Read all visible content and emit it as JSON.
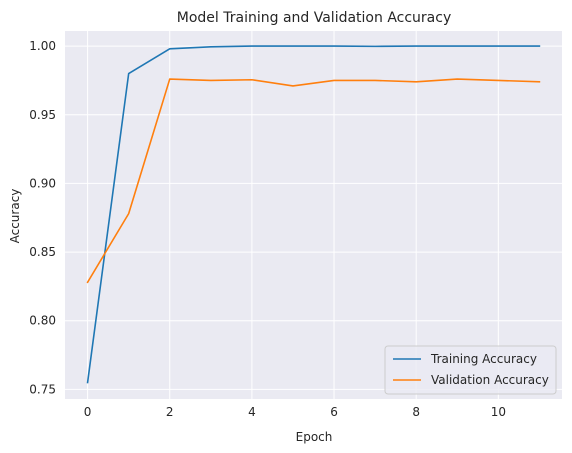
{
  "chart_data": {
    "type": "line",
    "title": "Model Training and Validation Accuracy",
    "xlabel": "Epoch",
    "ylabel": "Accuracy",
    "xlim": [
      -0.55,
      11.55
    ],
    "ylim": [
      0.743,
      1.011
    ],
    "xticks": [
      0,
      2,
      4,
      6,
      8,
      10
    ],
    "xtick_labels": [
      "0",
      "2",
      "4",
      "6",
      "8",
      "10"
    ],
    "yticks": [
      0.75,
      0.8,
      0.85,
      0.9,
      0.95,
      1.0
    ],
    "ytick_labels": [
      "0.75",
      "0.80",
      "0.85",
      "0.90",
      "0.95",
      "1.00"
    ],
    "grid": true,
    "legend_position": "lower-right",
    "x": [
      0,
      1,
      2,
      3,
      4,
      5,
      6,
      7,
      8,
      9,
      10,
      11
    ],
    "series": [
      {
        "name": "Training Accuracy",
        "color": "#1f77b4",
        "values": [
          0.755,
          0.98,
          0.998,
          0.9995,
          1.0,
          1.0,
          1.0,
          0.9998,
          1.0,
          1.0,
          1.0,
          1.0
        ]
      },
      {
        "name": "Validation Accuracy",
        "color": "#ff7f0e",
        "values": [
          0.828,
          0.878,
          0.976,
          0.975,
          0.9755,
          0.971,
          0.975,
          0.975,
          0.974,
          0.976,
          0.975,
          0.974
        ]
      }
    ],
    "colors": {
      "plot_background": "#eaeaf2",
      "grid": "#ffffff"
    }
  }
}
